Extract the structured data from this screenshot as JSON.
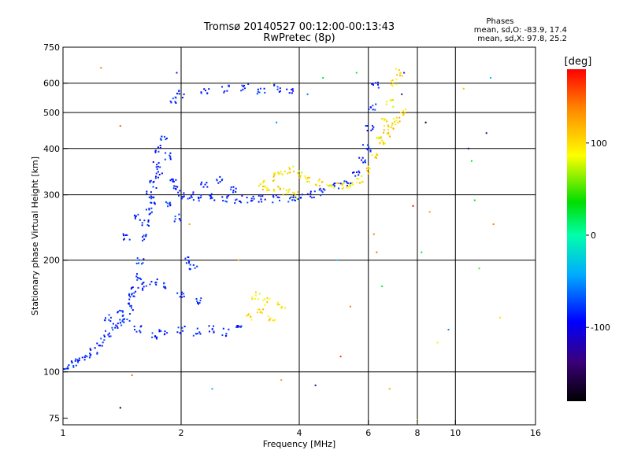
{
  "chart_data": {
    "type": "scatter",
    "title": "Tromsø 20140527 00:12:00-00:13:43",
    "subtitle": "RwPretec (8p)",
    "stats_header": "Phases",
    "stats_line1": "mean, sd,O: -83.9, 17.4",
    "stats_line2": "mean, sd,X:  97.8, 25.2",
    "xlabel": "Frequency [MHz]",
    "ylabel": "Stationary phase Virtual Height [km]",
    "x_scale": "log2",
    "y_scale": "log",
    "xlim": [
      1,
      16
    ],
    "ylim": [
      72,
      750
    ],
    "xticks": [
      1,
      2,
      4,
      6,
      8,
      10,
      16
    ],
    "yticks": [
      75,
      100,
      200,
      300,
      400,
      500,
      600,
      750
    ],
    "grid_x": [
      2,
      4,
      6,
      8,
      10
    ],
    "grid_y": [
      100,
      200,
      300,
      400,
      500,
      600
    ],
    "colorbar": {
      "label": "[deg]",
      "range": [
        -180,
        180
      ],
      "ticks": [
        -100,
        0,
        100
      ]
    },
    "series": [
      {
        "mode": "O",
        "phase_mean": -83.9,
        "phase_sd": 17.4,
        "points": [
          [
            1.02,
            103
          ],
          [
            1.06,
            105
          ],
          [
            1.1,
            107
          ],
          [
            1.15,
            110
          ],
          [
            1.2,
            114
          ],
          [
            1.25,
            120
          ],
          [
            1.3,
            127
          ],
          [
            1.35,
            133
          ],
          [
            1.4,
            136
          ],
          [
            1.45,
            140
          ],
          [
            1.5,
            150
          ],
          [
            1.52,
            165
          ],
          [
            1.55,
            180
          ],
          [
            1.57,
            200
          ],
          [
            1.6,
            230
          ],
          [
            1.62,
            250
          ],
          [
            1.65,
            270
          ],
          [
            1.68,
            290
          ],
          [
            1.7,
            320
          ],
          [
            1.73,
            360
          ],
          [
            1.76,
            400
          ],
          [
            1.8,
            430
          ],
          [
            1.85,
            380
          ],
          [
            1.9,
            330
          ],
          [
            1.95,
            310
          ],
          [
            2.0,
            300
          ],
          [
            2.1,
            298
          ],
          [
            2.2,
            296
          ],
          [
            2.4,
            295
          ],
          [
            2.6,
            293
          ],
          [
            2.8,
            292
          ],
          [
            3.0,
            292
          ],
          [
            3.2,
            292
          ],
          [
            3.5,
            292
          ],
          [
            3.8,
            294
          ],
          [
            4.0,
            296
          ],
          [
            4.3,
            300
          ],
          [
            4.6,
            306
          ],
          [
            5.0,
            315
          ],
          [
            5.3,
            325
          ],
          [
            5.6,
            345
          ],
          [
            5.8,
            370
          ],
          [
            5.95,
            400
          ],
          [
            6.05,
            450
          ],
          [
            6.15,
            520
          ],
          [
            6.25,
            590
          ],
          [
            1.55,
            130
          ],
          [
            1.7,
            125
          ],
          [
            1.8,
            128
          ],
          [
            2.0,
            130
          ],
          [
            2.2,
            128
          ],
          [
            2.4,
            130
          ],
          [
            2.6,
            128
          ],
          [
            2.8,
            132
          ],
          [
            1.5,
            160
          ],
          [
            1.6,
            170
          ],
          [
            1.7,
            175
          ],
          [
            1.8,
            172
          ],
          [
            2.0,
            160
          ],
          [
            2.2,
            155
          ],
          [
            1.9,
            540
          ],
          [
            2.0,
            560
          ],
          [
            2.3,
            570
          ],
          [
            2.6,
            578
          ],
          [
            2.9,
            585
          ],
          [
            3.2,
            575
          ],
          [
            3.5,
            580
          ],
          [
            3.8,
            570
          ],
          [
            1.45,
            230
          ],
          [
            1.55,
            260
          ],
          [
            1.65,
            300
          ],
          [
            1.75,
            340
          ],
          [
            1.85,
            280
          ],
          [
            1.95,
            260
          ],
          [
            2.3,
            320
          ],
          [
            2.5,
            330
          ],
          [
            2.7,
            310
          ],
          [
            1.3,
            140
          ],
          [
            1.4,
            145
          ],
          [
            2.05,
            200
          ],
          [
            2.15,
            190
          ]
        ]
      },
      {
        "mode": "X",
        "phase_mean": 97.8,
        "phase_sd": 25.2,
        "points": [
          [
            3.2,
            320
          ],
          [
            3.4,
            335
          ],
          [
            3.6,
            345
          ],
          [
            3.8,
            350
          ],
          [
            4.0,
            340
          ],
          [
            4.2,
            330
          ],
          [
            4.5,
            325
          ],
          [
            4.8,
            320
          ],
          [
            5.1,
            318
          ],
          [
            5.4,
            320
          ],
          [
            5.7,
            330
          ],
          [
            6.0,
            350
          ],
          [
            6.2,
            380
          ],
          [
            6.4,
            420
          ],
          [
            6.6,
            470
          ],
          [
            6.8,
            530
          ],
          [
            7.0,
            600
          ],
          [
            7.2,
            640
          ],
          [
            3.3,
            315
          ],
          [
            3.5,
            310
          ],
          [
            3.7,
            305
          ],
          [
            3.9,
            300
          ],
          [
            3.0,
            140
          ],
          [
            3.2,
            145
          ],
          [
            3.4,
            138
          ],
          [
            3.6,
            150
          ],
          [
            3.1,
            160
          ],
          [
            3.3,
            155
          ],
          [
            6.5,
            420
          ],
          [
            6.7,
            440
          ],
          [
            6.9,
            460
          ],
          [
            7.1,
            480
          ],
          [
            7.3,
            500
          ]
        ]
      },
      {
        "mode": "noise",
        "points": [
          [
            1.25,
            660
          ],
          [
            1.4,
            460
          ],
          [
            1.4,
            80
          ],
          [
            1.5,
            98
          ],
          [
            1.95,
            640
          ],
          [
            2.1,
            250
          ],
          [
            2.4,
            90
          ],
          [
            2.8,
            200
          ],
          [
            3.4,
            600
          ],
          [
            3.5,
            470
          ],
          [
            3.6,
            95
          ],
          [
            4.2,
            560
          ],
          [
            4.4,
            92
          ],
          [
            4.6,
            620
          ],
          [
            5.0,
            200
          ],
          [
            5.1,
            110
          ],
          [
            5.4,
            150
          ],
          [
            5.6,
            640
          ],
          [
            6.3,
            210
          ],
          [
            6.5,
            170
          ],
          [
            6.8,
            90
          ],
          [
            7.3,
            560
          ],
          [
            7.8,
            280
          ],
          [
            8.0,
            74
          ],
          [
            8.2,
            210
          ],
          [
            8.4,
            470
          ],
          [
            8.6,
            270
          ],
          [
            9.0,
            120
          ],
          [
            9.6,
            130
          ],
          [
            10.5,
            580
          ],
          [
            10.8,
            400
          ],
          [
            11.0,
            370
          ],
          [
            11.5,
            190
          ],
          [
            12.0,
            440
          ],
          [
            12.3,
            620
          ],
          [
            12.5,
            250
          ],
          [
            13.0,
            140
          ],
          [
            11.2,
            290
          ],
          [
            7.4,
            640
          ],
          [
            6.2,
            235
          ]
        ]
      }
    ]
  }
}
